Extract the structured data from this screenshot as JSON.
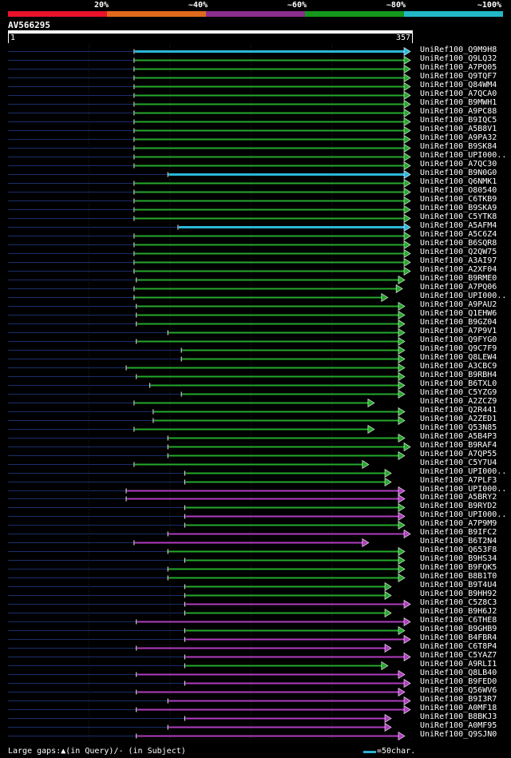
{
  "legend": {
    "segments": [
      {
        "label": "20%",
        "color": "#e8122a"
      },
      {
        "label": "~40%",
        "color": "#e06a1c"
      },
      {
        "label": "~60%",
        "color": "#8a2f8c"
      },
      {
        "label": "~80%",
        "color": "#15981c"
      },
      {
        "label": "~100%",
        "color": "#22b8c8"
      }
    ]
  },
  "query": {
    "id": "AV566295",
    "start": "1",
    "end": "357",
    "length": 357
  },
  "colors": {
    "cyan": "#2ab8d8",
    "green": "#25a82c",
    "purple": "#b03cc0",
    "navy": "#1a2e6a",
    "gridline": "#222",
    "marker": "#ffffaa"
  },
  "hits": [
    {
      "name": "UniRef100_Q9M9H8",
      "color": "cyan",
      "start": 113,
      "end": 357
    },
    {
      "name": "UniRef100_Q9LQ32",
      "color": "green",
      "start": 113,
      "end": 357
    },
    {
      "name": "UniRef100_A7PQ05",
      "color": "green",
      "start": 113,
      "end": 357
    },
    {
      "name": "UniRef100_Q9TQF7",
      "color": "green",
      "start": 113,
      "end": 357
    },
    {
      "name": "UniRef100_Q84WM4",
      "color": "green",
      "start": 113,
      "end": 357
    },
    {
      "name": "UniRef100_A7QCA0",
      "color": "green",
      "start": 113,
      "end": 357
    },
    {
      "name": "UniRef100_B9MWH1",
      "color": "green",
      "start": 113,
      "end": 357
    },
    {
      "name": "UniRef100_A9PC88",
      "color": "green",
      "start": 113,
      "end": 357
    },
    {
      "name": "UniRef100_B9IQC5",
      "color": "green",
      "start": 113,
      "end": 357
    },
    {
      "name": "UniRef100_A5B8V1",
      "color": "green",
      "start": 113,
      "end": 357
    },
    {
      "name": "UniRef100_A9PA32",
      "color": "green",
      "start": 113,
      "end": 357
    },
    {
      "name": "UniRef100_B9SK84",
      "color": "green",
      "start": 113,
      "end": 357
    },
    {
      "name": "UniRef100_UPI000..",
      "color": "green",
      "start": 113,
      "end": 357
    },
    {
      "name": "UniRef100_A7QC30",
      "color": "green",
      "start": 113,
      "end": 357
    },
    {
      "name": "UniRef100_B9N0G0",
      "color": "cyan",
      "start": 143,
      "end": 357
    },
    {
      "name": "UniRef100_Q6NMK1",
      "color": "green",
      "start": 113,
      "end": 357
    },
    {
      "name": "UniRef100_O80540",
      "color": "green",
      "start": 113,
      "end": 357
    },
    {
      "name": "UniRef100_C6TKB9",
      "color": "green",
      "start": 113,
      "end": 357
    },
    {
      "name": "UniRef100_B9SKA9",
      "color": "green",
      "start": 113,
      "end": 357
    },
    {
      "name": "UniRef100_C5YTK8",
      "color": "green",
      "start": 113,
      "end": 357
    },
    {
      "name": "UniRef100_A5AFM4",
      "color": "cyan",
      "start": 152,
      "end": 357
    },
    {
      "name": "UniRef100_A5C6Z4",
      "color": "green",
      "start": 113,
      "end": 357
    },
    {
      "name": "UniRef100_B6SQR8",
      "color": "green",
      "start": 113,
      "end": 357
    },
    {
      "name": "UniRef100_Q2QW75",
      "color": "green",
      "start": 113,
      "end": 357
    },
    {
      "name": "UniRef100_A3AI97",
      "color": "green",
      "start": 113,
      "end": 357
    },
    {
      "name": "UniRef100_A2XF04",
      "color": "green",
      "start": 113,
      "end": 357
    },
    {
      "name": "UniRef100_B9RME0",
      "color": "green",
      "start": 115,
      "end": 352
    },
    {
      "name": "UniRef100_A7PQ06",
      "color": "green",
      "start": 113,
      "end": 350
    },
    {
      "name": "UniRef100_UPI000..",
      "color": "green",
      "start": 113,
      "end": 337
    },
    {
      "name": "UniRef100_A9PAU2",
      "color": "green",
      "start": 115,
      "end": 352
    },
    {
      "name": "UniRef100_Q1EHW6",
      "color": "green",
      "start": 115,
      "end": 352
    },
    {
      "name": "UniRef100_B9GZ04",
      "color": "green",
      "start": 115,
      "end": 352
    },
    {
      "name": "UniRef100_A7P9V1",
      "color": "green",
      "start": 143,
      "end": 352
    },
    {
      "name": "UniRef100_Q9FYG0",
      "color": "green",
      "start": 115,
      "end": 352
    },
    {
      "name": "UniRef100_Q9C7F9",
      "color": "green",
      "start": 155,
      "end": 352
    },
    {
      "name": "UniRef100_Q8LEW4",
      "color": "green",
      "start": 155,
      "end": 352
    },
    {
      "name": "UniRef100_A3CBC9",
      "color": "green",
      "start": 106,
      "end": 352
    },
    {
      "name": "UniRef100_B9RBH4",
      "color": "green",
      "start": 115,
      "end": 352
    },
    {
      "name": "UniRef100_B6TXL0",
      "color": "green",
      "start": 127,
      "end": 352
    },
    {
      "name": "UniRef100_C5YZG9",
      "color": "green",
      "start": 155,
      "end": 352
    },
    {
      "name": "UniRef100_A2ZCZ9",
      "color": "green",
      "start": 113,
      "end": 325
    },
    {
      "name": "UniRef100_Q2R441",
      "color": "green",
      "start": 130,
      "end": 352
    },
    {
      "name": "UniRef100_A2ZED1",
      "color": "green",
      "start": 130,
      "end": 352
    },
    {
      "name": "UniRef100_Q53N85",
      "color": "green",
      "start": 113,
      "end": 325
    },
    {
      "name": "UniRef100_A5B4P3",
      "color": "green",
      "start": 143,
      "end": 352
    },
    {
      "name": "UniRef100_B9RAF4",
      "color": "green",
      "start": 143,
      "end": 357
    },
    {
      "name": "UniRef100_A7QP55",
      "color": "green",
      "start": 143,
      "end": 352
    },
    {
      "name": "UniRef100_C5Y7U4",
      "color": "green",
      "start": 113,
      "end": 320
    },
    {
      "name": "UniRef100_UPI000..",
      "color": "green",
      "start": 158,
      "end": 340
    },
    {
      "name": "UniRef100_A7PLF3",
      "color": "green",
      "start": 158,
      "end": 340
    },
    {
      "name": "UniRef100_UPI000..",
      "color": "purple",
      "start": 106,
      "end": 352
    },
    {
      "name": "UniRef100_A5BRY2",
      "color": "purple",
      "start": 106,
      "end": 352
    },
    {
      "name": "UniRef100_B9RYD2",
      "color": "green",
      "start": 158,
      "end": 352
    },
    {
      "name": "UniRef100_UPI000..",
      "color": "purple",
      "start": 158,
      "end": 352
    },
    {
      "name": "UniRef100_A7P9M9",
      "color": "green",
      "start": 158,
      "end": 352
    },
    {
      "name": "UniRef100_B9IFC2",
      "color": "purple",
      "start": 143,
      "end": 357
    },
    {
      "name": "UniRef100_B6T2N4",
      "color": "purple",
      "start": 113,
      "end": 320
    },
    {
      "name": "UniRef100_Q653F8",
      "color": "green",
      "start": 143,
      "end": 352
    },
    {
      "name": "UniRef100_B9HS34",
      "color": "green",
      "start": 158,
      "end": 352
    },
    {
      "name": "UniRef100_B9FQK5",
      "color": "green",
      "start": 143,
      "end": 352
    },
    {
      "name": "UniRef100_B8B1T0",
      "color": "green",
      "start": 143,
      "end": 352
    },
    {
      "name": "UniRef100_B9T4U4",
      "color": "green",
      "start": 158,
      "end": 340
    },
    {
      "name": "UniRef100_B9HH92",
      "color": "green",
      "start": 158,
      "end": 340
    },
    {
      "name": "UniRef100_C5Z8C3",
      "color": "purple",
      "start": 158,
      "end": 357
    },
    {
      "name": "UniRef100_B9H6J2",
      "color": "green",
      "start": 158,
      "end": 340
    },
    {
      "name": "UniRef100_C6THE8",
      "color": "purple",
      "start": 115,
      "end": 357
    },
    {
      "name": "UniRef100_B9GHB9",
      "color": "green",
      "start": 158,
      "end": 352
    },
    {
      "name": "UniRef100_B4FBR4",
      "color": "purple",
      "start": 158,
      "end": 357
    },
    {
      "name": "UniRef100_C6T8P4",
      "color": "purple",
      "start": 115,
      "end": 340
    },
    {
      "name": "UniRef100_C5YAZ7",
      "color": "purple",
      "start": 158,
      "end": 357
    },
    {
      "name": "UniRef100_A9RLI1",
      "color": "green",
      "start": 158,
      "end": 337
    },
    {
      "name": "UniRef100_Q8LB40",
      "color": "purple",
      "start": 115,
      "end": 352
    },
    {
      "name": "UniRef100_B9FED0",
      "color": "purple",
      "start": 158,
      "end": 357
    },
    {
      "name": "UniRef100_Q56WV6",
      "color": "purple",
      "start": 115,
      "end": 352
    },
    {
      "name": "UniRef100_B9I3R7",
      "color": "purple",
      "start": 143,
      "end": 357
    },
    {
      "name": "UniRef100_A0MF18",
      "color": "purple",
      "start": 115,
      "end": 357
    },
    {
      "name": "UniRef100_B8BKJ3",
      "color": "purple",
      "start": 158,
      "end": 340
    },
    {
      "name": "UniRef100_A0MF95",
      "color": "purple",
      "start": 143,
      "end": 340
    },
    {
      "name": "UniRef100_Q9SJN0",
      "color": "purple",
      "start": 115,
      "end": 352
    }
  ],
  "footer": {
    "gap_legend": "Large gaps:▲(in Query)/- (in Subject)",
    "scale_label": "=50char."
  }
}
